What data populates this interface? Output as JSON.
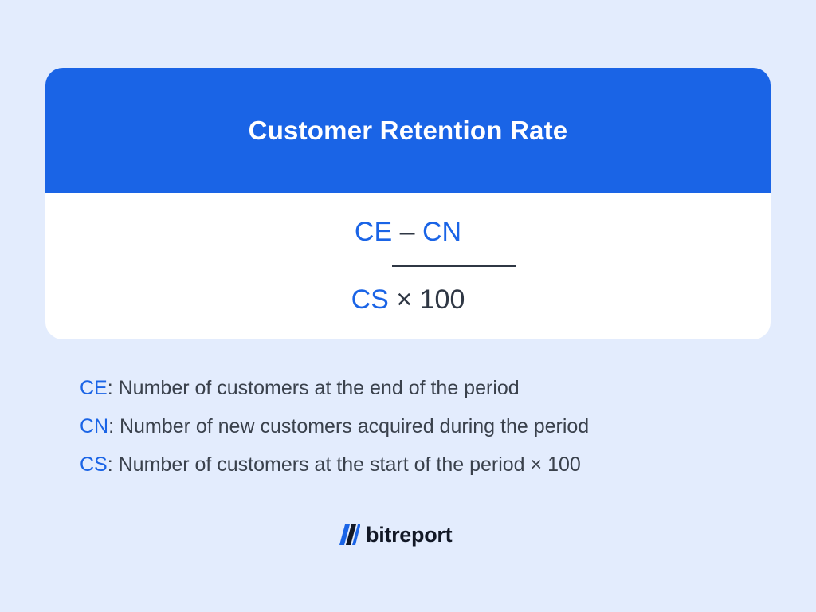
{
  "card": {
    "title": "Customer Retention Rate"
  },
  "formula": {
    "numerator": {
      "left": "CE",
      "operator": "–",
      "right": "CN"
    },
    "denominator": {
      "left": "CS",
      "operator": "×",
      "right": "100"
    }
  },
  "legend": {
    "items": [
      {
        "abbr": "CE",
        "text": ": Number of customers at the end of the period"
      },
      {
        "abbr": "CN",
        "text": ": Number of new customers acquired during the period"
      },
      {
        "abbr": "CS",
        "text": ": Number of customers at the start of the period × 100"
      }
    ]
  },
  "brand": {
    "name": "bitreport",
    "logo_icon": "bitreport-slashes-icon"
  },
  "colors": {
    "background": "#e3ecfd",
    "accent": "#1a64e6",
    "text": "#2f3744"
  }
}
